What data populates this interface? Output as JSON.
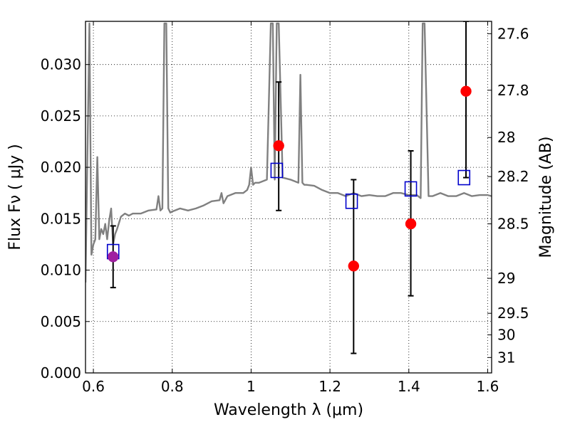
{
  "chart_data": {
    "type": "scatter",
    "xlabel": "Wavelength  λ (μm)",
    "ylabel": "Flux  Fν  ( μJy )",
    "ylabel_right": "Magnitude (AB)",
    "xlim": [
      0.58,
      1.61
    ],
    "ylim": [
      0.0,
      0.0342
    ],
    "grid": true,
    "x_ticks": [
      0.6,
      0.8,
      1.0,
      1.2,
      1.4,
      1.6
    ],
    "x_tick_labels": [
      "0.6",
      "0.8",
      "1",
      "1.2",
      "1.4",
      "1.6"
    ],
    "y_ticks": [
      0.0,
      0.005,
      0.01,
      0.015,
      0.02,
      0.025,
      0.03
    ],
    "y_tick_labels": [
      "0.000",
      "0.005",
      "0.010",
      "0.015",
      "0.020",
      "0.025",
      "0.030"
    ],
    "right_ticks": [
      {
        "flux": 0.033,
        "label": "27.6"
      },
      {
        "flux": 0.0275,
        "label": "27.8"
      },
      {
        "flux": 0.0229,
        "label": "28"
      },
      {
        "flux": 0.0191,
        "label": "28.2"
      },
      {
        "flux": 0.0145,
        "label": "28.5"
      },
      {
        "flux": 0.0092,
        "label": "29"
      },
      {
        "flux": 0.0058,
        "label": "29.5"
      },
      {
        "flux": 0.0037,
        "label": "30"
      },
      {
        "flux": 0.0015,
        "label": "31"
      }
    ],
    "colors": {
      "spectrum": "#808080",
      "model_marker": "#0000cc",
      "observed": "#ff0000",
      "observed_first": "#a020a0",
      "errorbar": "#000000",
      "grid": "#000000"
    },
    "series": [
      {
        "kind": "spectrum",
        "x": [
          0.58,
          0.59,
          0.595,
          0.6,
          0.605,
          0.61,
          0.615,
          0.62,
          0.625,
          0.63,
          0.635,
          0.64,
          0.645,
          0.65,
          0.655,
          0.66,
          0.67,
          0.68,
          0.69,
          0.7,
          0.72,
          0.74,
          0.76,
          0.765,
          0.77,
          0.775,
          0.78,
          0.785,
          0.79,
          0.795,
          0.8,
          0.82,
          0.84,
          0.86,
          0.88,
          0.9,
          0.92,
          0.925,
          0.93,
          0.94,
          0.96,
          0.98,
          0.99,
          0.995,
          1.0,
          1.005,
          1.01,
          1.02,
          1.04,
          1.05,
          1.055,
          1.06,
          1.065,
          1.07,
          1.08,
          1.1,
          1.12,
          1.125,
          1.13,
          1.135,
          1.14,
          1.16,
          1.18,
          1.2,
          1.22,
          1.24,
          1.26,
          1.28,
          1.3,
          1.32,
          1.34,
          1.36,
          1.38,
          1.4,
          1.42,
          1.43,
          1.435,
          1.44,
          1.45,
          1.46,
          1.48,
          1.5,
          1.52,
          1.54,
          1.56,
          1.58,
          1.6,
          1.61
        ],
        "y": [
          0.0088,
          0.034,
          0.0115,
          0.0125,
          0.013,
          0.021,
          0.013,
          0.014,
          0.0135,
          0.0145,
          0.013,
          0.0148,
          0.016,
          0.0125,
          0.0135,
          0.014,
          0.0152,
          0.0155,
          0.0153,
          0.0155,
          0.0155,
          0.0158,
          0.0159,
          0.0172,
          0.0158,
          0.016,
          0.034,
          0.034,
          0.016,
          0.0156,
          0.0157,
          0.016,
          0.0158,
          0.016,
          0.0163,
          0.0167,
          0.0168,
          0.0175,
          0.0165,
          0.0172,
          0.0175,
          0.0175,
          0.0178,
          0.0183,
          0.02,
          0.0183,
          0.0185,
          0.0185,
          0.0188,
          0.034,
          0.034,
          0.0188,
          0.034,
          0.034,
          0.019,
          0.0188,
          0.0185,
          0.029,
          0.0185,
          0.0183,
          0.0183,
          0.0182,
          0.0178,
          0.0175,
          0.0175,
          0.0172,
          0.0175,
          0.0172,
          0.0173,
          0.0172,
          0.0172,
          0.0175,
          0.0175,
          0.0173,
          0.0173,
          0.017,
          0.034,
          0.034,
          0.0172,
          0.0172,
          0.0175,
          0.0172,
          0.0172,
          0.0175,
          0.0172,
          0.0173,
          0.0173,
          0.0172
        ]
      },
      {
        "kind": "model",
        "marker": "open-square",
        "x": [
          0.65,
          1.065,
          1.255,
          1.405,
          1.54
        ],
        "y": [
          0.0118,
          0.0197,
          0.0167,
          0.0179,
          0.019
        ]
      },
      {
        "kind": "observed",
        "marker": "filled-circle",
        "x": [
          0.65,
          1.07,
          1.26,
          1.405,
          1.545
        ],
        "y": [
          0.0113,
          0.0221,
          0.0104,
          0.0145,
          0.0274
        ],
        "y_err_low": [
          0.0083,
          0.0158,
          0.0019,
          0.0075,
          0.019
        ],
        "y_err_high": [
          0.0143,
          0.0283,
          0.0188,
          0.0216,
          0.0342
        ]
      }
    ]
  }
}
